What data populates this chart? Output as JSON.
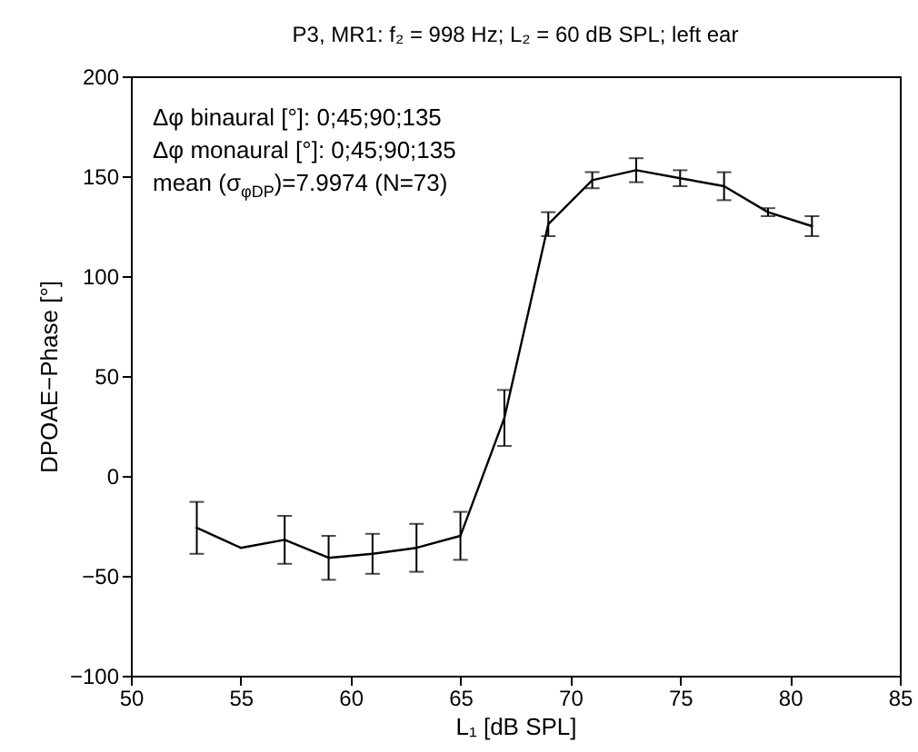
{
  "chart_data": {
    "type": "line",
    "title": "P3, MR1: f₂ = 998 Hz; L₂ = 60 dB SPL; left ear",
    "xlabel": "L₁ [dB SPL]",
    "ylabel": "DPOAE−Phase [°]",
    "x": [
      53,
      55,
      57,
      59,
      61,
      63,
      65,
      67,
      69,
      71,
      73,
      75,
      77,
      79,
      81
    ],
    "series": [
      {
        "color": "#000000",
        "values": [
          -26,
          -36,
          -32,
          -41,
          -39,
          -36,
          -30,
          29,
          126,
          148,
          153,
          149,
          145,
          132,
          125
        ],
        "errors": [
          13,
          null,
          12,
          11,
          10,
          12,
          12,
          14,
          6,
          4,
          6,
          4,
          7,
          2,
          5
        ]
      }
    ],
    "xlim": [
      50,
      85
    ],
    "xticks": [
      50,
      55,
      60,
      65,
      70,
      75,
      80,
      85
    ],
    "ylim": [
      -100,
      200
    ],
    "yticks": [
      -100,
      -50,
      0,
      50,
      100,
      150,
      200
    ],
    "grid": false,
    "marker": "none",
    "line_style": "solid",
    "annotations": [
      "Δφ binaural [°]: 0;45;90;135",
      "Δφ monaural [°]: 0;45;90;135",
      "mean (σ$_{φDP}$)=7.9974 (N=73)"
    ]
  }
}
